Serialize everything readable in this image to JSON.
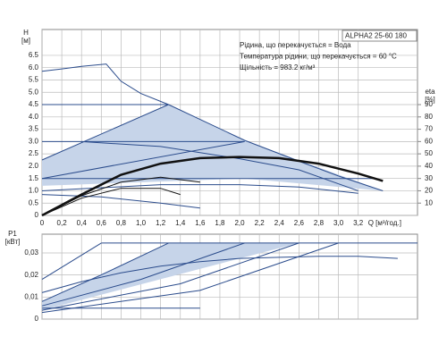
{
  "chart_data": [
    {
      "type": "line",
      "box_title": "ALPHA2 25-60 180",
      "annotations": [
        "Рідина, що перекачується = Вода",
        "Температура рідини, що перекачується = 60 °C",
        "Щільність = 983.2 кг/м³"
      ],
      "y_label": [
        "H",
        "[м]"
      ],
      "y2_label": [
        "eta",
        "[%]"
      ],
      "x_label": "Q [м³/год.]",
      "grid": true,
      "xlim": [
        0,
        3.8
      ],
      "ylim": [
        0,
        7.55
      ],
      "y2lim": [
        0,
        151
      ],
      "xticks": [
        0,
        {
          "value": 0.2,
          "label": "0,2"
        },
        {
          "value": 0.4,
          "label": "0,4"
        },
        {
          "value": 0.6,
          "label": "0,6"
        },
        {
          "value": 0.8,
          "label": "0,8"
        },
        {
          "value": 1,
          "label": "1,0"
        },
        {
          "value": 1.2,
          "label": "1,2"
        },
        {
          "value": 1.4,
          "label": "1,4"
        },
        {
          "value": 1.6,
          "label": "1,6"
        },
        {
          "value": 1.8,
          "label": "1,8"
        },
        {
          "value": 2,
          "label": "2,0"
        },
        {
          "value": 2.2,
          "label": "2,2"
        },
        {
          "value": 2.4,
          "label": "2,4"
        },
        {
          "value": 2.6,
          "label": "2,6"
        },
        {
          "value": 2.8,
          "label": "2,8"
        },
        {
          "value": 3,
          "label": "3,0"
        },
        {
          "value": 3.2,
          "label": "3,2"
        }
      ],
      "yticks": [
        0,
        0.5,
        {
          "value": 1,
          "label": "1.0"
        },
        1.5,
        {
          "value": 2,
          "label": "2.0"
        },
        2.5,
        {
          "value": 3,
          "label": "3.0"
        },
        3.5,
        {
          "value": 4,
          "label": "4.0"
        },
        4.5,
        {
          "value": 5,
          "label": "5.0"
        },
        5.5,
        {
          "value": 6,
          "label": "6.0"
        },
        6.5
      ],
      "y2ticks": [
        10,
        20,
        30,
        40,
        50,
        60,
        70,
        80,
        90
      ],
      "series": [
        {
          "color": "#c6d4e9",
          "fill": true,
          "x": [
            0,
            1.28,
            2.05,
            3.45,
            2.05,
            0
          ],
          "values": [
            2.25,
            4.5,
            3.05,
            1.0,
            1.5,
            1.2
          ]
        },
        {
          "color": "#2b4c8c",
          "x": [
            0,
            0.2,
            0.4,
            0.65,
            0.8,
            1.0,
            1.28,
            2.05,
            2.6,
            3.0,
            3.45
          ],
          "values": [
            5.85,
            5.95,
            6.05,
            6.15,
            5.45,
            4.95,
            4.5,
            3.05,
            2.2,
            1.6,
            1.0
          ]
        },
        {
          "color": "#2b4c8c",
          "x": [
            0,
            1.28
          ],
          "values": [
            4.5,
            4.5
          ]
        },
        {
          "color": "#2b4c8c",
          "x": [
            0,
            1.28
          ],
          "values": [
            2.25,
            4.5
          ]
        },
        {
          "color": "#2b4c8c",
          "x": [
            0,
            2.05
          ],
          "values": [
            3.0,
            3.0
          ]
        },
        {
          "color": "#2b4c8c",
          "x": [
            0,
            2.05
          ],
          "values": [
            1.5,
            3.0
          ]
        },
        {
          "color": "#2b4c8c",
          "x": [
            0,
            3.35
          ],
          "values": [
            1.5,
            1.5
          ]
        },
        {
          "color": "#2b4c8c",
          "x": [
            0,
            1.2,
            2.0,
            2.6,
            3.2
          ],
          "values": [
            1.0,
            1.25,
            1.25,
            1.15,
            0.9
          ]
        },
        {
          "color": "#2b4c8c",
          "x": [
            0,
            0.6,
            1.2,
            1.6
          ],
          "values": [
            0.85,
            0.75,
            0.5,
            0.3
          ]
        },
        {
          "color": "#2b4c8c",
          "x": [
            0.4,
            1.2,
            2.0,
            2.6,
            3.2
          ],
          "values": [
            3.0,
            2.8,
            2.3,
            1.85,
            1.0
          ]
        },
        {
          "color": "#111111",
          "axis": "y2",
          "width": 2.5,
          "x": [
            0,
            0.4,
            0.8,
            1.2,
            1.6,
            2.0,
            2.4,
            2.8,
            3.2,
            3.45
          ],
          "values": [
            0,
            17,
            33,
            42,
            46.5,
            47.5,
            46.5,
            42,
            34,
            28
          ]
        },
        {
          "color": "#111111",
          "axis": "y2",
          "x": [
            0,
            0.4,
            0.8,
            1.2,
            1.6
          ],
          "values": [
            0,
            16,
            27,
            31,
            27
          ]
        },
        {
          "color": "#111111",
          "axis": "y2",
          "x": [
            0,
            0.4,
            0.8,
            1.2,
            1.4
          ],
          "values": [
            0,
            14,
            22,
            22,
            17
          ]
        }
      ]
    },
    {
      "type": "line",
      "y_label": [
        "P1",
        "[кВт]"
      ],
      "grid": true,
      "xlim": [
        0,
        3.8
      ],
      "ylim": [
        0,
        0.0385
      ],
      "yticks": [
        0,
        {
          "value": 0.01,
          "label": "0,01"
        },
        {
          "value": 0.02,
          "label": "0,02"
        },
        {
          "value": 0.03,
          "label": "0,03"
        }
      ],
      "series": [
        {
          "color": "#c6d4e9",
          "fill": true,
          "x": [
            0,
            1.28,
            2.6,
            0
          ],
          "values": [
            0.008,
            0.0345,
            0.0345,
            0.004
          ]
        },
        {
          "color": "#2b4c8c",
          "x": [
            0.6,
            3.8
          ],
          "values": [
            0.0345,
            0.0345
          ]
        },
        {
          "color": "#2b4c8c",
          "x": [
            0,
            0.6
          ],
          "values": [
            0.018,
            0.0345
          ]
        },
        {
          "color": "#2b4c8c",
          "x": [
            0,
            0.4,
            0.8,
            1.2,
            1.6,
            2.0,
            2.4,
            2.8,
            3.2,
            3.6
          ],
          "values": [
            0.012,
            0.017,
            0.021,
            0.024,
            0.026,
            0.0275,
            0.028,
            0.0285,
            0.0285,
            0.0275
          ]
        },
        {
          "color": "#2b4c8c",
          "x": [
            0,
            0.6,
            1.28
          ],
          "values": [
            0.008,
            0.02,
            0.0345
          ]
        },
        {
          "color": "#2b4c8c",
          "x": [
            0,
            1.0,
            2.05
          ],
          "values": [
            0.006,
            0.018,
            0.0345
          ]
        },
        {
          "color": "#2b4c8c",
          "x": [
            0,
            1.4,
            2.6
          ],
          "values": [
            0.004,
            0.016,
            0.0345
          ]
        },
        {
          "color": "#2b4c8c",
          "x": [
            0,
            1.6,
            3.0
          ],
          "values": [
            0.003,
            0.013,
            0.0345
          ]
        },
        {
          "color": "#2b4c8c",
          "x": [
            0,
            1.6
          ],
          "values": [
            0.005,
            0.005
          ]
        }
      ]
    }
  ]
}
